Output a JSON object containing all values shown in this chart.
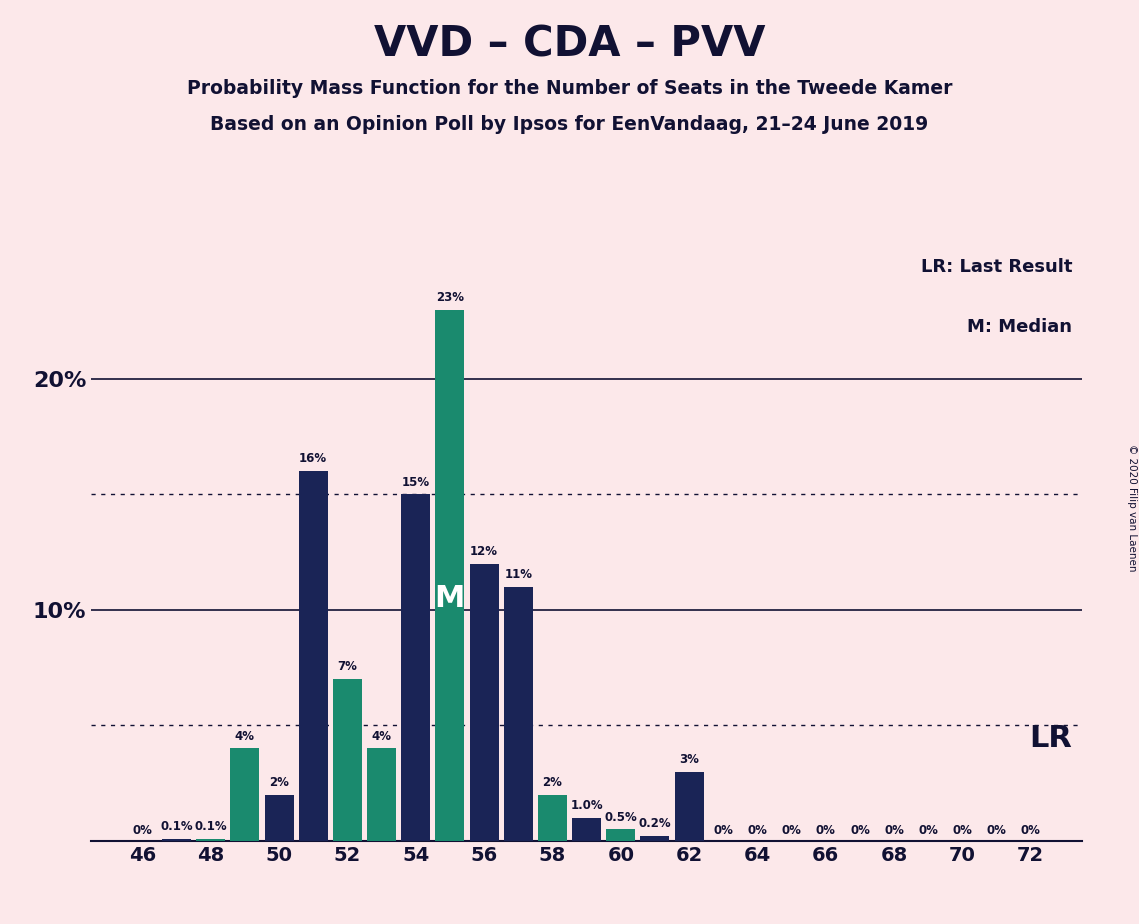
{
  "title": "VVD – CDA – PVV",
  "subtitle1": "Probability Mass Function for the Number of Seats in the Tweede Kamer",
  "subtitle2": "Based on an Opinion Poll by Ipsos for EenVandaag, 21–24 June 2019",
  "copyright": "© 2020 Filip van Laenen",
  "background_color": "#fce8ea",
  "bar_color_teal": "#1a8a6e",
  "bar_color_navy": "#1a2456",
  "title_color": "#111133",
  "seats": [
    46,
    47,
    48,
    49,
    50,
    51,
    52,
    53,
    54,
    55,
    56,
    57,
    58,
    59,
    60,
    61,
    62,
    63,
    64,
    65,
    66,
    67,
    68,
    69,
    70,
    71,
    72
  ],
  "probabilities": [
    0.0,
    0.1,
    0.1,
    4.0,
    2.0,
    16.0,
    7.0,
    4.0,
    15.0,
    23.0,
    12.0,
    11.0,
    2.0,
    1.0,
    0.5,
    0.2,
    3.0,
    0.0,
    0.0,
    0.0,
    0.0,
    0.0,
    0.0,
    0.0,
    0.0,
    0.0,
    0.0
  ],
  "bar_colors": [
    "#1a2456",
    "#1a2456",
    "#1a8a6e",
    "#1a8a6e",
    "#1a2456",
    "#1a2456",
    "#1a8a6e",
    "#1a8a6e",
    "#1a2456",
    "#1a8a6e",
    "#1a2456",
    "#1a2456",
    "#1a8a6e",
    "#1a2456",
    "#1a8a6e",
    "#1a2456",
    "#1a2456",
    "#1a8a6e",
    "#1a2456",
    "#1a2456",
    "#1a2456",
    "#1a2456",
    "#1a2456",
    "#1a2456",
    "#1a2456",
    "#1a2456",
    "#1a2456"
  ],
  "label_strings": [
    "0%",
    "0.1%",
    "0.1%",
    "4%",
    "2%",
    "16%",
    "7%",
    "4%",
    "15%",
    "23%",
    "12%",
    "11%",
    "2%",
    "1.0%",
    "0.5%",
    "0.2%",
    "3%",
    "0%",
    "0%",
    "0%",
    "0%",
    "0%",
    "0%",
    "0%",
    "0%",
    "0%",
    "0%"
  ],
  "median_seat": 55,
  "lr_seat": 62,
  "xlim": [
    44.5,
    73.5
  ],
  "ylim": [
    0,
    26
  ],
  "dotted_lines": [
    5.0,
    15.0
  ],
  "solid_lines": [
    10.0,
    20.0
  ],
  "lr_label": "LR: Last Result",
  "m_label": "M: Median",
  "lr_text": "LR"
}
